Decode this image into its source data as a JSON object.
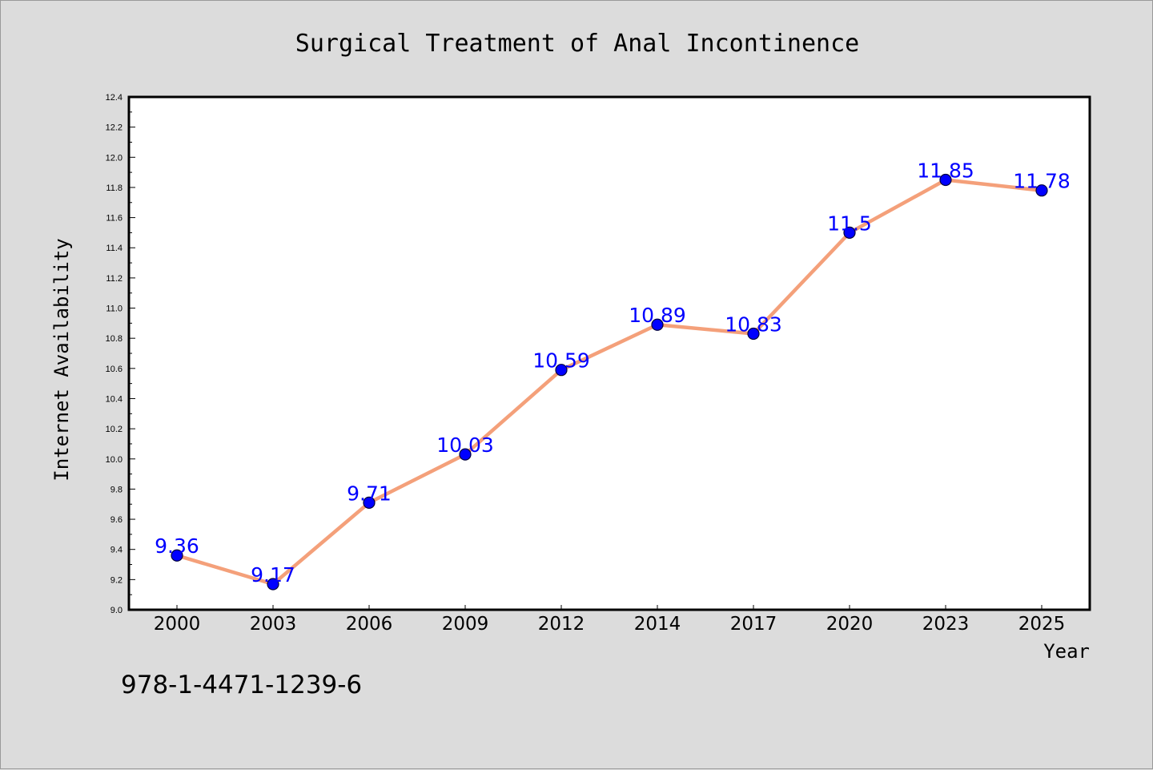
{
  "chart_data": {
    "type": "line",
    "title": "Surgical Treatment of Anal Incontinence",
    "xlabel": "Year",
    "ylabel": "Internet Availability",
    "categories": [
      "2000",
      "2003",
      "2006",
      "2009",
      "2012",
      "2014",
      "2017",
      "2020",
      "2023",
      "2025"
    ],
    "series": [
      {
        "values": [
          9.36,
          9.17,
          9.71,
          10.03,
          10.59,
          10.89,
          10.83,
          11.5,
          11.85,
          11.78
        ],
        "data_labels": [
          "9.36",
          "9.17",
          "9.71",
          "10.03",
          "10.59",
          "10.89",
          "10.83",
          "11.5",
          "11.85",
          "11.78"
        ]
      }
    ],
    "ylim": [
      9.0,
      12.4
    ],
    "yticks": [
      "9.0",
      "9.2",
      "9.4",
      "9.6",
      "9.8",
      "10.0",
      "10.2",
      "10.4",
      "10.6",
      "10.8",
      "11.0",
      "11.2",
      "11.4",
      "11.6",
      "11.8",
      "12.0",
      "12.2",
      "12.4"
    ],
    "grid": false,
    "legend": "none",
    "colors": {
      "line": "#f4a07a",
      "marker": "#0000ff",
      "marker_edge": "#00003c",
      "data_label": "#0000ff",
      "plot_background": "#ffffff",
      "figure_background": "#dcdcdc"
    }
  },
  "annotation": {
    "isbn": "978-1-4471-1239-6"
  }
}
